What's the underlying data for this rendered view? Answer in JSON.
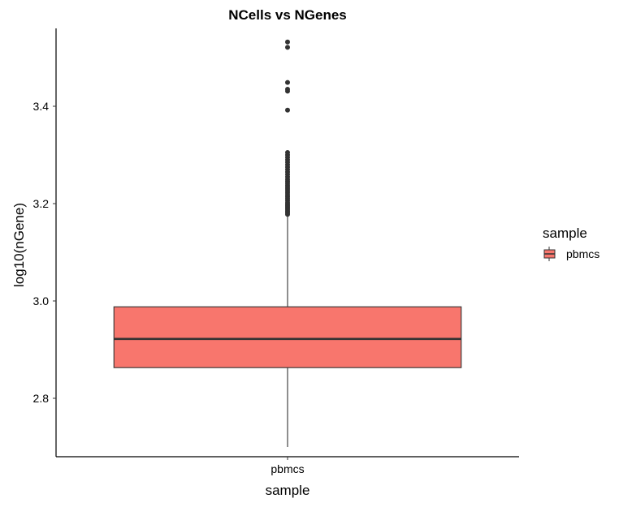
{
  "chart_data": {
    "type": "box",
    "title": "NCells vs NGenes",
    "xlabel": "sample",
    "ylabel": "log10(nGene)",
    "categories": [
      "pbmcs"
    ],
    "ylim": [
      2.68,
      3.56
    ],
    "yticks": [
      2.8,
      3.0,
      3.2,
      3.4
    ],
    "ytick_labels": [
      "2.8",
      "3.0",
      "3.2",
      "3.4"
    ],
    "grid": false,
    "legend": {
      "title": "sample",
      "position": "right",
      "entries": [
        "pbmcs"
      ]
    },
    "series": [
      {
        "name": "pbmcs",
        "color": "#F8766D",
        "whisker_low": 2.7,
        "q1": 2.863,
        "median": 2.922,
        "q3": 2.988,
        "whisker_high": 3.175,
        "outliers": [
          3.178,
          3.181,
          3.184,
          3.187,
          3.19,
          3.193,
          3.196,
          3.199,
          3.202,
          3.206,
          3.21,
          3.214,
          3.218,
          3.222,
          3.226,
          3.23,
          3.234,
          3.238,
          3.242,
          3.246,
          3.25,
          3.255,
          3.26,
          3.265,
          3.27,
          3.275,
          3.28,
          3.285,
          3.29,
          3.295,
          3.3,
          3.305,
          3.392,
          3.431,
          3.435,
          3.449,
          3.521,
          3.532
        ]
      }
    ]
  }
}
